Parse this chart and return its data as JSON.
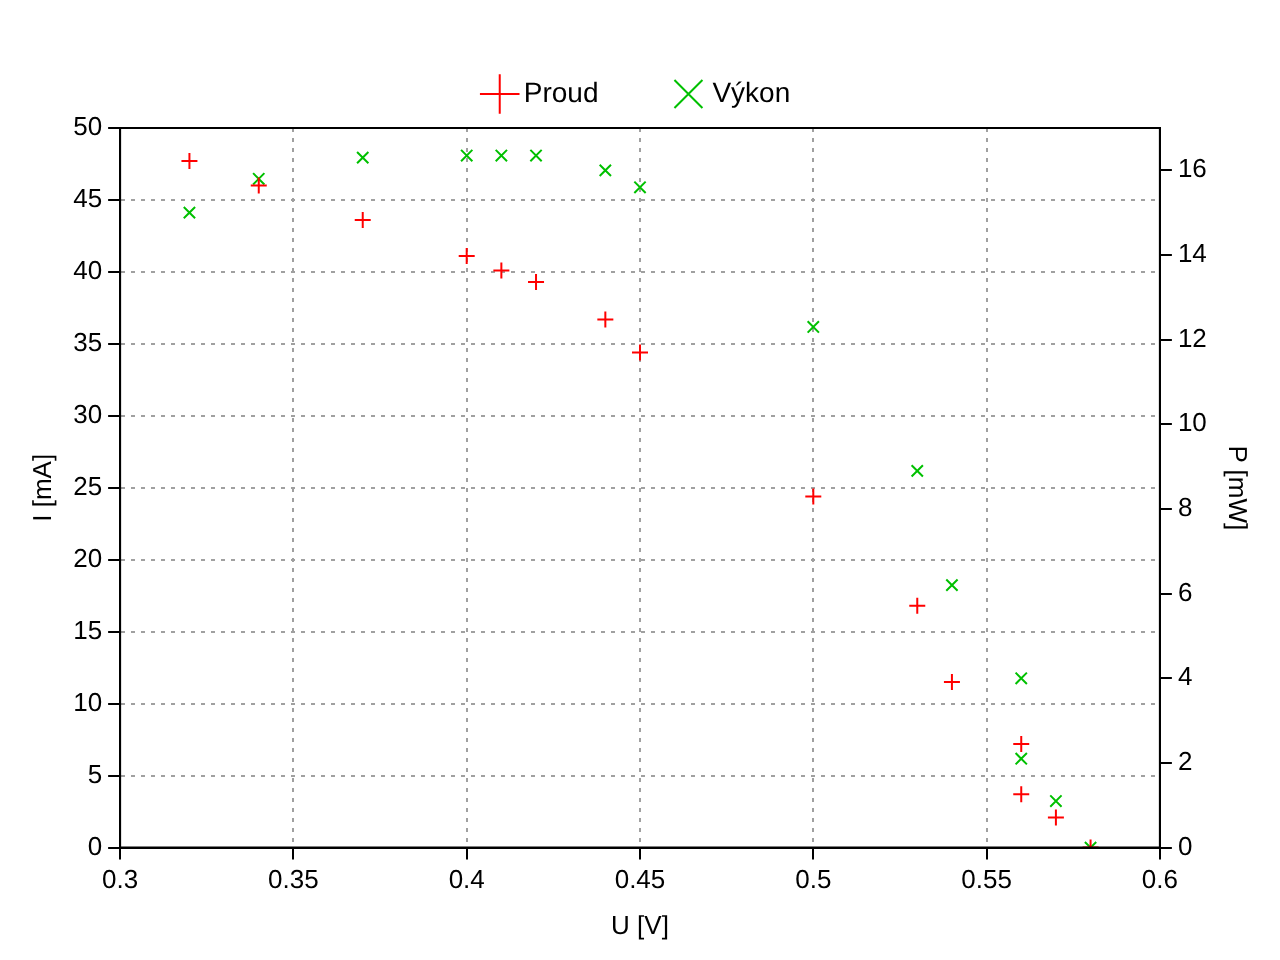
{
  "chart_data": {
    "type": "scatter",
    "xlabel": "U [V]",
    "ylabel": "I [mA]",
    "y2label": "P [mW]",
    "xlim": [
      0.3,
      0.6
    ],
    "xticks": [
      0.3,
      0.35,
      0.4,
      0.45,
      0.5,
      0.55,
      0.6
    ],
    "ylim": [
      0,
      50
    ],
    "yticks": [
      0,
      5,
      10,
      15,
      20,
      25,
      30,
      35,
      40,
      45,
      50
    ],
    "y2lim": [
      0,
      17
    ],
    "y2ticks": [
      0,
      2,
      4,
      6,
      8,
      10,
      12,
      14,
      16
    ],
    "grid": true,
    "legend": "top",
    "marker": "cross",
    "series": [
      {
        "name": "Proud",
        "color": "#ff0000",
        "x": [
          0.32,
          0.34,
          0.37,
          0.4,
          0.41,
          0.42,
          0.44,
          0.45,
          0.5,
          0.53,
          0.54,
          0.56,
          0.56,
          0.57,
          0.58
        ],
        "values": [
          47.7,
          46.0,
          43.6,
          41.1,
          40.1,
          39.3,
          36.7,
          34.4,
          24.4,
          16.8,
          11.5,
          7.2,
          3.7,
          2.1,
          0
        ]
      },
      {
        "name": "Výkon",
        "color": "#00c000",
        "axis": "y2",
        "x": [
          0.32,
          0.34,
          0.37,
          0.4,
          0.41,
          0.42,
          0.44,
          0.45,
          0.5,
          0.53,
          0.54,
          0.56,
          0.56,
          0.57,
          0.58
        ],
        "values": [
          15.0,
          15.8,
          16.3,
          16.35,
          16.35,
          16.35,
          16.0,
          15.6,
          12.3,
          8.9,
          6.2,
          4.0,
          2.1,
          1.1,
          0
        ]
      }
    ]
  }
}
